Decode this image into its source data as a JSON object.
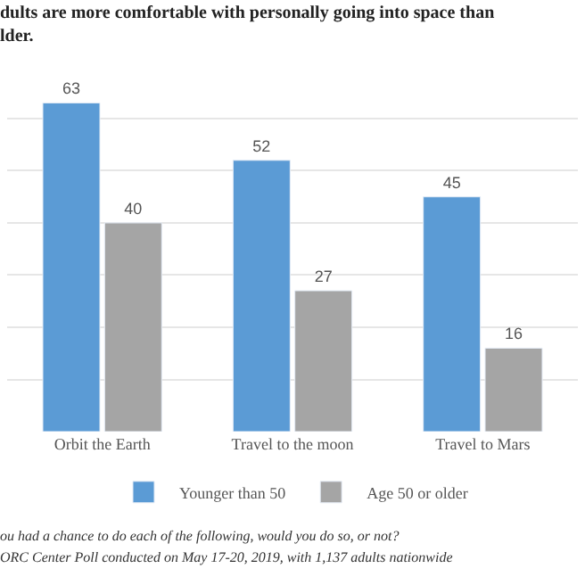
{
  "chart_data": {
    "type": "bar",
    "title": "dults are more comfortable with personally going into space than\nlder.",
    "categories": [
      "Orbit the Earth",
      "Travel to the moon",
      "Travel to Mars"
    ],
    "series": [
      {
        "name": "Younger than 50",
        "color": "#5b9bd5",
        "values": [
          63,
          52,
          45
        ]
      },
      {
        "name": "Age 50 or older",
        "color": "#a5a5a5",
        "values": [
          40,
          27,
          16
        ]
      }
    ],
    "tick_labels": "x",
    "grid": "y",
    "legend": "bottom",
    "data_labels": true,
    "annotations": [
      "ou had a chance to do each of the following, would you do so, or not?",
      "ORC Center Poll conducted on May 17-20, 2019, with 1,137 adults nationwide"
    ]
  }
}
